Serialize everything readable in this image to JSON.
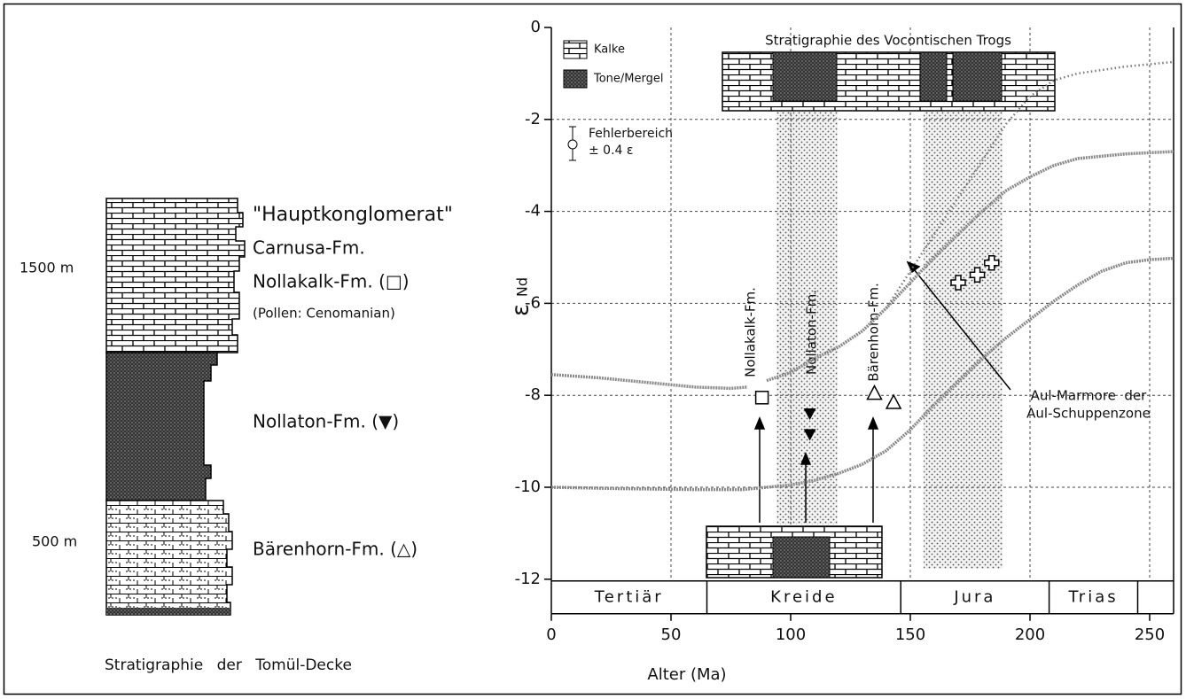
{
  "column": {
    "depth_labels": [
      "1500 m",
      "500 m"
    ],
    "formations": [
      "\"Hauptkonglomerat\"",
      "Carnusa-Fm.",
      "Nollakalk-Fm. (□)",
      "(Pollen: Cenomanian)",
      "Nollaton-Fm. (▼)",
      "Bärenhorn-Fm. (△)"
    ],
    "caption": "Stratigraphie der Tomül-Decke"
  },
  "chart_data": {
    "type": "line",
    "xlabel": "Alter (Ma)",
    "ylabel": "ε",
    "ylabel_sub": "Nd",
    "xlim": [
      0,
      260
    ],
    "ylim": [
      -12,
      0
    ],
    "xticks": [
      0,
      50,
      100,
      150,
      200,
      250
    ],
    "yticks": [
      -12,
      -10,
      -8,
      -6,
      -4,
      -2,
      0
    ],
    "grid": true,
    "legend": [
      "Kalke",
      "Tone/Mergel"
    ],
    "top_title": "Stratigraphie des Vocontischen Trogs",
    "error_note": [
      "Fehlerbereich",
      "± 0.4 ε"
    ],
    "annotations": [
      "Nollakalk-Fm.",
      "Nollaton-Fm.",
      "Bärenhorn-Fm.",
      "Aul-Marmore  der",
      "Aul-Schuppenzone"
    ],
    "periods": [
      {
        "name": "Tertiär",
        "start": 0,
        "end": 65
      },
      {
        "name": "Kreide",
        "start": 65,
        "end": 146
      },
      {
        "name": "Jura",
        "start": 146,
        "end": 208
      },
      {
        "name": "Trias",
        "start": 208,
        "end": 245
      }
    ],
    "series": [
      {
        "style": "hatched",
        "color": "#8a8a8a",
        "x": [
          0,
          20,
          40,
          60,
          75,
          82,
          84,
          90,
          100,
          110,
          120,
          130,
          140,
          150,
          160,
          170,
          180,
          190,
          200,
          210,
          220,
          240,
          260
        ],
        "values": [
          -7.55,
          -7.62,
          -7.72,
          -7.82,
          -7.85,
          -7.82,
          null,
          -7.68,
          -7.5,
          -7.2,
          -6.95,
          -6.6,
          -6.1,
          -5.55,
          -5.0,
          -4.5,
          -4.0,
          -3.55,
          -3.25,
          -3.0,
          -2.85,
          -2.75,
          -2.7
        ]
      },
      {
        "style": "dotted",
        "color": "#777777",
        "x": [
          140,
          150,
          160,
          170,
          180,
          190,
          200,
          210,
          220,
          240,
          260
        ],
        "values": [
          -6.1,
          -5.3,
          -4.5,
          -3.7,
          -2.9,
          -2.1,
          -1.5,
          -1.15,
          -1.0,
          -0.85,
          -0.75
        ]
      },
      {
        "style": "hatched",
        "color": "#8a8a8a",
        "x": [
          0,
          30,
          60,
          80,
          90,
          100,
          110,
          120,
          130,
          140,
          150,
          160,
          170,
          180,
          190,
          200,
          210,
          220,
          230,
          240,
          250,
          260
        ],
        "values": [
          -10.0,
          -10.03,
          -10.05,
          -10.05,
          -10.0,
          -9.95,
          -9.85,
          -9.7,
          -9.5,
          -9.2,
          -8.75,
          -8.2,
          -7.7,
          -7.2,
          -6.75,
          -6.35,
          -5.95,
          -5.6,
          -5.3,
          -5.12,
          -5.05,
          -5.02
        ]
      },
      {
        "style": "points",
        "marker": "square",
        "color": "#000000",
        "x": [
          88
        ],
        "values": [
          -8.05
        ]
      },
      {
        "style": "points",
        "marker": "triangle-down",
        "color": "#000000",
        "x": [
          108,
          108
        ],
        "values": [
          -8.4,
          -8.85
        ]
      },
      {
        "style": "points",
        "marker": "triangle-up",
        "color": "#000000",
        "x": [
          135,
          143
        ],
        "values": [
          -7.95,
          -8.15
        ]
      },
      {
        "style": "points",
        "marker": "cross",
        "color": "#000000",
        "x": [
          170,
          178,
          184
        ],
        "values": [
          -5.55,
          -5.38,
          -5.12
        ]
      }
    ]
  }
}
